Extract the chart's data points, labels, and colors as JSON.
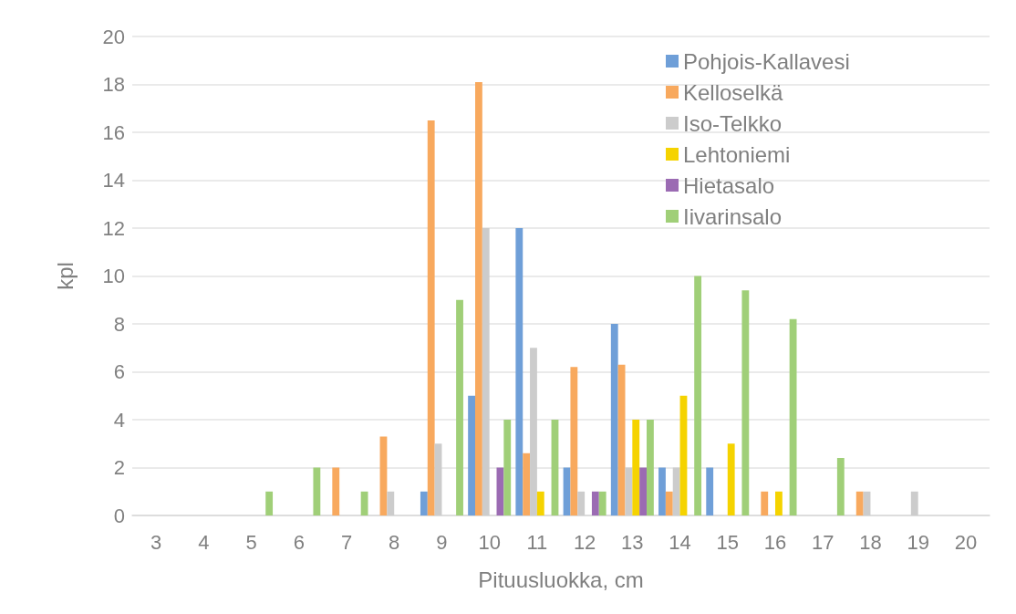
{
  "chart_data": {
    "type": "bar",
    "xlabel": "Pituusluokka, cm",
    "ylabel": "kpl",
    "categories": [
      "3",
      "4",
      "5",
      "6",
      "7",
      "8",
      "9",
      "10",
      "11",
      "12",
      "13",
      "14",
      "15",
      "16",
      "17",
      "18",
      "19",
      "20"
    ],
    "series": [
      {
        "name": "Pohjois-Kallavesi",
        "color": "#6f9fd8",
        "values": [
          0,
          0,
          0,
          0,
          0,
          0,
          1,
          5,
          12,
          2,
          8,
          2,
          2,
          0,
          0,
          0,
          0,
          0
        ]
      },
      {
        "name": "Kelloselkä",
        "color": "#f8a95e",
        "values": [
          0,
          0,
          0,
          0,
          2,
          3.3,
          16.5,
          18.1,
          2.6,
          6.2,
          6.3,
          1,
          0,
          1,
          0,
          1,
          0,
          0
        ]
      },
      {
        "name": "Iso-Telkko",
        "color": "#cccccc",
        "values": [
          0,
          0,
          0,
          0,
          0,
          1,
          3,
          12,
          7,
          1,
          2,
          2,
          0,
          0,
          0,
          1,
          1,
          0
        ]
      },
      {
        "name": "Lehtoniemi",
        "color": "#f5d300",
        "values": [
          0,
          0,
          0,
          0,
          0,
          0,
          0,
          0,
          1,
          0,
          4,
          5,
          3,
          1,
          0,
          0,
          0,
          0
        ]
      },
      {
        "name": "Hietasalo",
        "color": "#9b6bb3",
        "values": [
          0,
          0,
          0,
          0,
          0,
          0,
          0,
          2,
          0,
          1,
          2,
          0,
          0,
          0,
          0,
          0,
          0,
          0
        ]
      },
      {
        "name": "Iivarinsalo",
        "color": "#a0cf78",
        "values": [
          0,
          0,
          1,
          2,
          1,
          0,
          9,
          4,
          4,
          1,
          4,
          10,
          9.4,
          8.2,
          2.4,
          0,
          0,
          0
        ]
      }
    ],
    "ylim": [
      0,
      20
    ],
    "yticks": [
      0,
      2,
      4,
      6,
      8,
      10,
      12,
      14,
      16,
      18,
      20
    ],
    "grid": "y",
    "legend": "top right"
  }
}
